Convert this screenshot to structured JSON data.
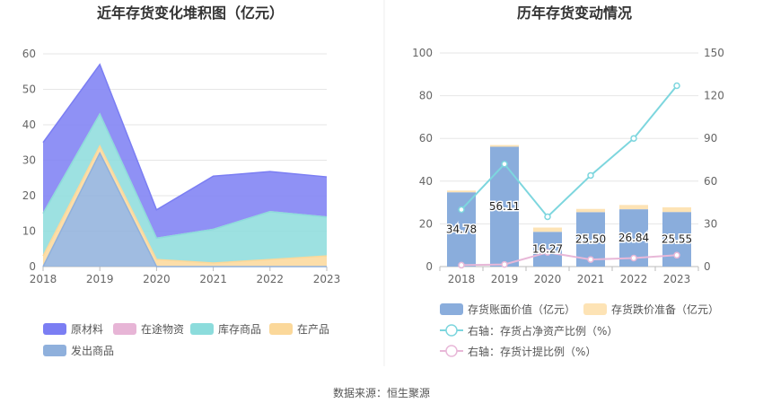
{
  "source": "数据来源：恒生聚源",
  "chart_data": [
    {
      "type": "area",
      "stacked": true,
      "title": "近年存货变化堆积图（亿元）",
      "x": [
        "2018",
        "2019",
        "2020",
        "2021",
        "2022",
        "2023"
      ],
      "ylim": [
        0,
        60
      ],
      "yticks": [
        "0",
        "10",
        "20",
        "30",
        "40",
        "50",
        "60"
      ],
      "grid": true,
      "legend_position": "bottom",
      "series": [
        {
          "name": "原材料",
          "color": "#7b7ef3",
          "values": [
            20.0,
            14.0,
            8.0,
            15.0,
            11.3,
            11.3
          ]
        },
        {
          "name": "在途物资",
          "color": "#e7b5d6",
          "values": [
            0.0,
            0.0,
            0.0,
            0.0,
            0.0,
            0.0
          ]
        },
        {
          "name": "库存商品",
          "color": "#8cdcdc",
          "values": [
            12.0,
            9.0,
            6.0,
            9.5,
            13.5,
            11.0
          ]
        },
        {
          "name": "在产品",
          "color": "#fbd89a",
          "values": [
            3.0,
            2.0,
            2.0,
            1.0,
            2.0,
            3.0
          ]
        },
        {
          "name": "发出商品",
          "color": "#8fb0dc",
          "values": [
            0.0,
            32.0,
            0.0,
            0.0,
            0.0,
            0.0
          ]
        }
      ]
    },
    {
      "type": "bar",
      "title": "历年存货变动情况",
      "categories": [
        "2018",
        "2019",
        "2020",
        "2021",
        "2022",
        "2023"
      ],
      "ylim_left": [
        0,
        100
      ],
      "yticks_left": [
        "0",
        "20",
        "40",
        "60",
        "80",
        "100"
      ],
      "ylim_right": [
        0,
        150
      ],
      "yticks_right": [
        "0",
        "30",
        "60",
        "90",
        "120",
        "150"
      ],
      "grid": true,
      "legend_position": "bottom",
      "series": [
        {
          "name": "存货账面价值（亿元）",
          "color": "#8aaddc",
          "axis": "left",
          "kind": "bar",
          "values": [
            34.78,
            56.11,
            16.27,
            25.5,
            26.84,
            25.55
          ],
          "labels": [
            "34.78",
            "56.11",
            "16.27",
            "25.50",
            "26.84",
            "25.55"
          ]
        },
        {
          "name": "存货跌价准备（亿元）",
          "color": "#fde3b5",
          "axis": "left",
          "kind": "bar",
          "values": [
            0.8,
            0.8,
            2.0,
            1.5,
            2.0,
            2.2
          ]
        },
        {
          "name": "右轴：存货占净资产比例（%）",
          "color": "#7dd6de",
          "axis": "right",
          "kind": "line",
          "values": [
            40,
            72,
            35,
            64,
            90,
            127
          ]
        },
        {
          "name": "右轴：存货计提比例（%）",
          "color": "#e8b8d8",
          "axis": "right",
          "kind": "line",
          "values": [
            1,
            1.5,
            10,
            5,
            6,
            8
          ]
        }
      ]
    }
  ]
}
